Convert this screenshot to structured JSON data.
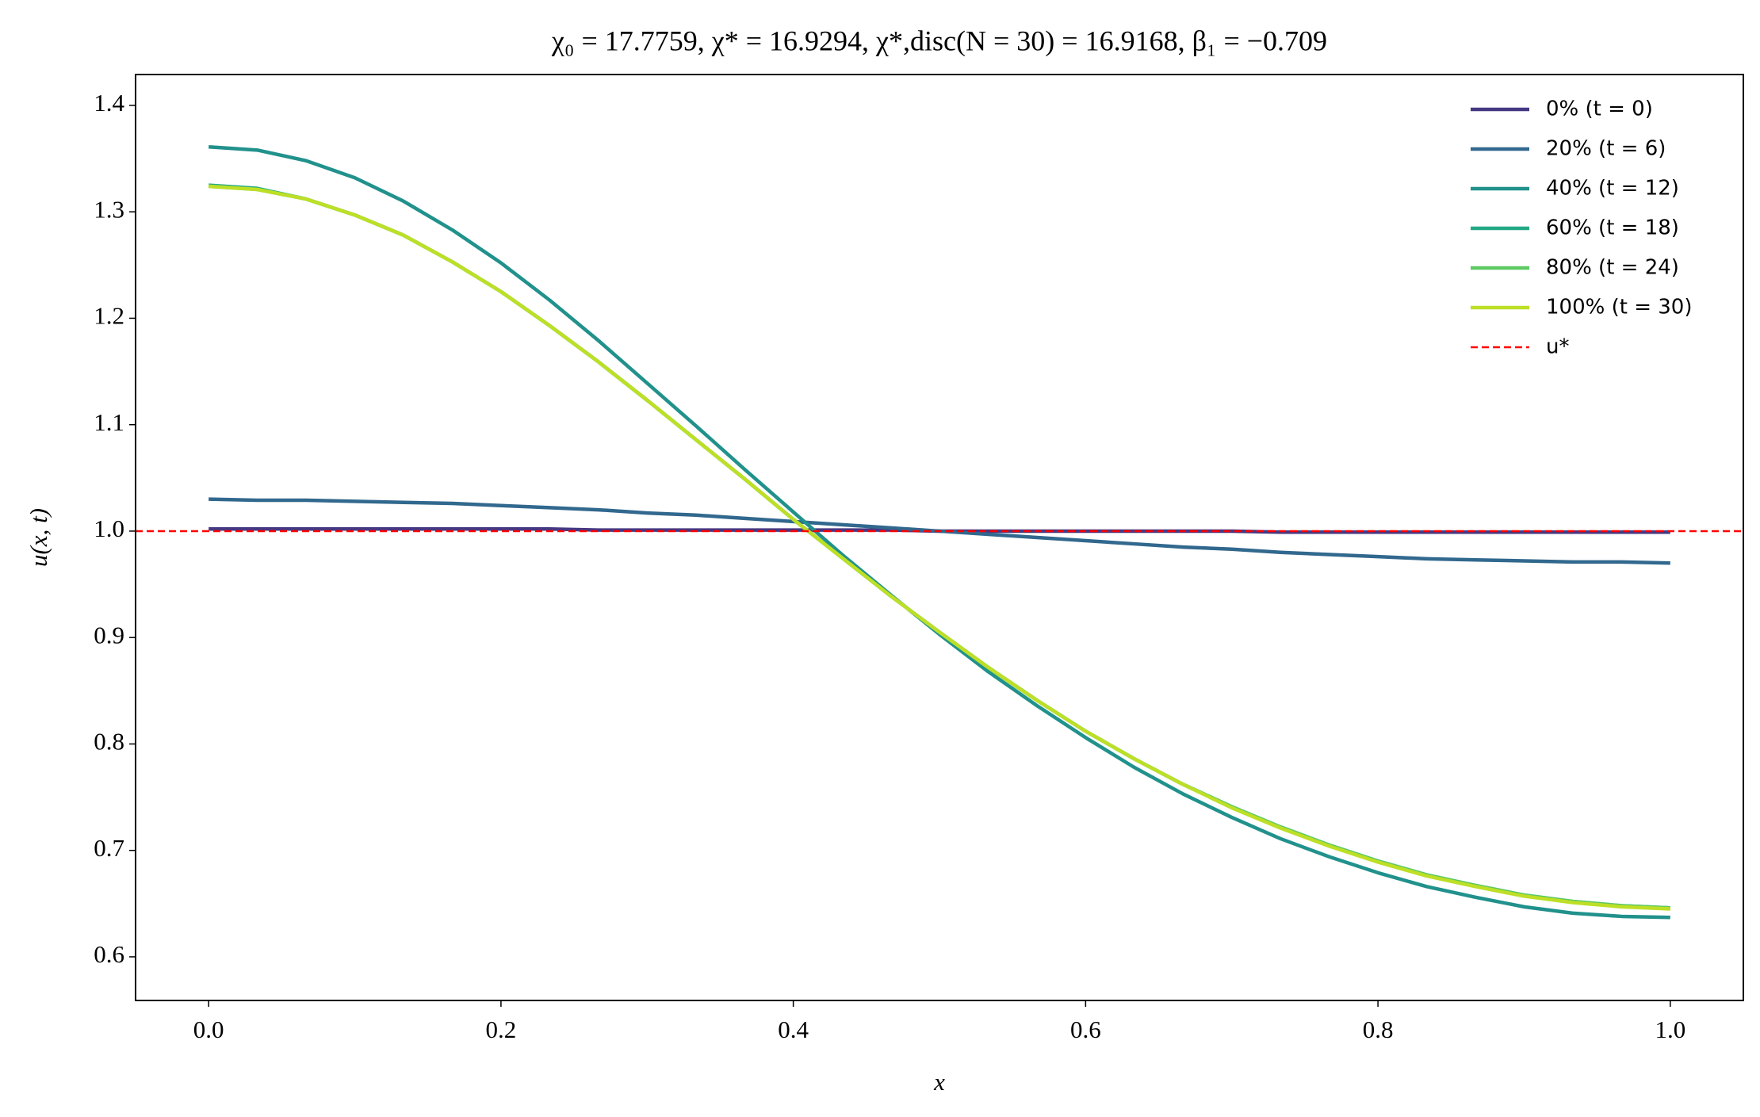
{
  "chart_data": {
    "type": "line",
    "title": "χ₀ = 17.7759,  χ* = 16.9294,  χ*,disc(N = 30) = 16.9168,  β₁ = −0.709",
    "xlabel": "x",
    "ylabel": "u(x, t)",
    "x": [
      0,
      0.0333,
      0.0667,
      0.1,
      0.1333,
      0.1667,
      0.2,
      0.2333,
      0.2667,
      0.3,
      0.3333,
      0.3667,
      0.4,
      0.4333,
      0.4667,
      0.5,
      0.5333,
      0.5667,
      0.6,
      0.6333,
      0.6667,
      0.7,
      0.7333,
      0.7667,
      0.8,
      0.8333,
      0.8667,
      0.9,
      0.9333,
      0.9667,
      1
    ],
    "series": [
      {
        "name": "0% (t = 0)",
        "color": "#443983",
        "values": [
          1.002,
          1.002,
          1.002,
          1.002,
          1.002,
          1.002,
          1.002,
          1.002,
          1.001,
          1.001,
          1.001,
          1.001,
          1.001,
          1.001,
          1.001,
          1.0,
          1.0,
          1.0,
          1.0,
          1.0,
          1.0,
          1.0,
          0.999,
          0.999,
          0.999,
          0.999,
          0.999,
          0.999,
          0.999,
          0.999,
          0.999
        ]
      },
      {
        "name": "20% (t = 6)",
        "color": "#31688e",
        "values": [
          1.03,
          1.029,
          1.029,
          1.028,
          1.027,
          1.026,
          1.024,
          1.022,
          1.02,
          1.017,
          1.015,
          1.012,
          1.009,
          1.006,
          1.003,
          1.0,
          0.997,
          0.994,
          0.991,
          0.988,
          0.985,
          0.983,
          0.98,
          0.978,
          0.976,
          0.974,
          0.973,
          0.972,
          0.971,
          0.971,
          0.97
        ]
      },
      {
        "name": "40% (t = 12)",
        "color": "#21918c",
        "values": [
          1.361,
          1.358,
          1.348,
          1.332,
          1.31,
          1.283,
          1.252,
          1.217,
          1.179,
          1.139,
          1.099,
          1.058,
          1.018,
          0.978,
          0.94,
          0.903,
          0.868,
          0.836,
          0.806,
          0.778,
          0.753,
          0.731,
          0.711,
          0.694,
          0.679,
          0.666,
          0.656,
          0.647,
          0.641,
          0.638,
          0.637
        ]
      },
      {
        "name": "60% (t = 18)",
        "color": "#22a884",
        "values": [
          1.325,
          1.322,
          1.312,
          1.297,
          1.278,
          1.253,
          1.225,
          1.193,
          1.159,
          1.123,
          1.086,
          1.049,
          1.011,
          0.975,
          0.939,
          0.905,
          0.872,
          0.841,
          0.812,
          0.786,
          0.762,
          0.741,
          0.722,
          0.705,
          0.69,
          0.677,
          0.667,
          0.658,
          0.652,
          0.648,
          0.646
        ]
      },
      {
        "name": "80% (t = 24)",
        "color": "#5ec962",
        "values": [
          1.324,
          1.321,
          1.312,
          1.297,
          1.278,
          1.253,
          1.225,
          1.193,
          1.159,
          1.123,
          1.086,
          1.049,
          1.011,
          0.975,
          0.939,
          0.905,
          0.872,
          0.841,
          0.812,
          0.786,
          0.762,
          0.741,
          0.722,
          0.705,
          0.69,
          0.677,
          0.667,
          0.658,
          0.652,
          0.648,
          0.646
        ]
      },
      {
        "name": "100% (t = 30)",
        "color": "#bddf26",
        "values": [
          1.324,
          1.321,
          1.312,
          1.297,
          1.278,
          1.253,
          1.225,
          1.193,
          1.159,
          1.123,
          1.086,
          1.049,
          1.011,
          0.975,
          0.939,
          0.905,
          0.872,
          0.841,
          0.812,
          0.786,
          0.762,
          0.74,
          0.721,
          0.704,
          0.689,
          0.676,
          0.666,
          0.657,
          0.651,
          0.647,
          0.645
        ]
      }
    ],
    "hline": {
      "name": "u*",
      "value": 1,
      "color": "#ff0000"
    },
    "xlim": [
      -0.05,
      1.05
    ],
    "ylim": [
      0.559,
      1.429
    ],
    "xticks": [
      {
        "value": 0,
        "label": "0.0"
      },
      0.2,
      0.4,
      0.6,
      0.8,
      {
        "value": 1,
        "label": "1.0"
      }
    ],
    "yticks": [
      0.6,
      0.7,
      0.8,
      0.9,
      {
        "value": 1,
        "label": "1.0"
      },
      1.1,
      1.2,
      1.3,
      1.4
    ],
    "legend": "upper right"
  }
}
